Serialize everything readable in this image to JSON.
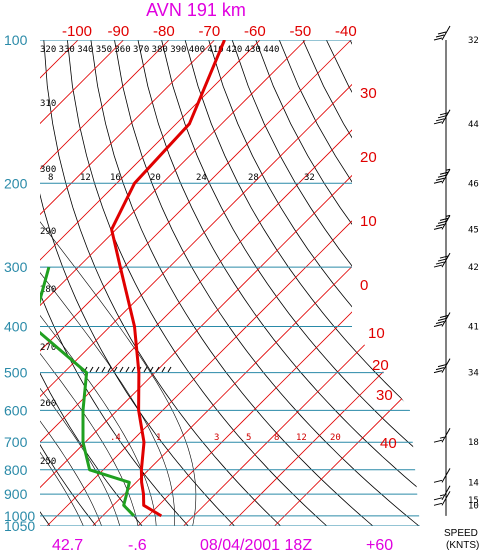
{
  "title": "AVN 191 km",
  "footer": {
    "left1": "42.7",
    "left2": "-.6",
    "center": "08/04/2001 18Z",
    "right": "+60"
  },
  "speed_label": [
    "SPEED",
    "(KNTS)"
  ],
  "colors": {
    "title": "#e000e0",
    "isotherm": "#e00000",
    "isobar": "#2a8aa8",
    "temp": "#e00000",
    "dew": "#20a020",
    "adiabat": "#000000"
  },
  "chart_data": {
    "type": "line",
    "title": "AVN 191 km",
    "pressure_levels": [
      100,
      200,
      300,
      400,
      500,
      600,
      700,
      800,
      900,
      1000,
      1050
    ],
    "pressure_labels": [
      "100",
      "200",
      "300",
      "400",
      "500",
      "600",
      "700",
      "800",
      "900",
      "1000",
      "1050"
    ],
    "top_temp_labels": [
      "-100",
      "-90",
      "-80",
      "-70",
      "-60",
      "-50",
      "-40"
    ],
    "right_temp_labels": [
      "30",
      "20",
      "10",
      "0",
      "10",
      "20",
      "30",
      "40"
    ],
    "theta_labels": [
      "320",
      "330",
      "340",
      "350",
      "360",
      "370",
      "380",
      "390",
      "400",
      "410",
      "420",
      "430",
      "440"
    ],
    "left_theta_labels": [
      "310",
      "300",
      "290",
      "280",
      "270",
      "260",
      "250"
    ],
    "mixing_ratio_labels_top": [
      "8",
      "12",
      "16",
      "20",
      "24",
      "28",
      "32"
    ],
    "mixing_ratio_labels_bottom": [
      ".4",
      "1",
      "3",
      "5",
      "8",
      "12",
      "20"
    ],
    "series": [
      {
        "name": "",
        "pressure": [
          1000,
          950,
          900,
          850,
          800,
          700,
          600,
          500,
          400,
          300,
          250,
          200,
          150,
          100
        ],
        "temp_c": [
          22.9,
          16.7,
          14.2,
          11.2,
          8.4,
          2.9,
          -5.3,
          -13.5,
          -24.6,
          -40.8,
          -51.0,
          -56.1,
          -57.1,
          -67.8
        ]
      },
      {
        "name": "",
        "pressure": [
          1000,
          950,
          900,
          850,
          800,
          700,
          600,
          500,
          400,
          300
        ],
        "temp_c": [
          16.9,
          12.3,
          10.5,
          8.5,
          -3.0,
          -10.5,
          -17.5,
          -25.0,
          -47.0,
          -56.5
        ]
      }
    ],
    "wind_speeds": [
      {
        "pressure": 100,
        "label": "32"
      },
      {
        "pressure": 150,
        "label": "44"
      },
      {
        "pressure": 200,
        "label": "46"
      },
      {
        "pressure": 250,
        "label": "45"
      },
      {
        "pressure": 300,
        "label": "42"
      },
      {
        "pressure": 400,
        "label": "41"
      },
      {
        "pressure": 500,
        "label": "34"
      },
      {
        "pressure": 700,
        "label": "18"
      },
      {
        "pressure": 850,
        "label": "14"
      },
      {
        "pressure": 925,
        "label": "15"
      },
      {
        "pressure": 950,
        "label": "10"
      }
    ]
  }
}
